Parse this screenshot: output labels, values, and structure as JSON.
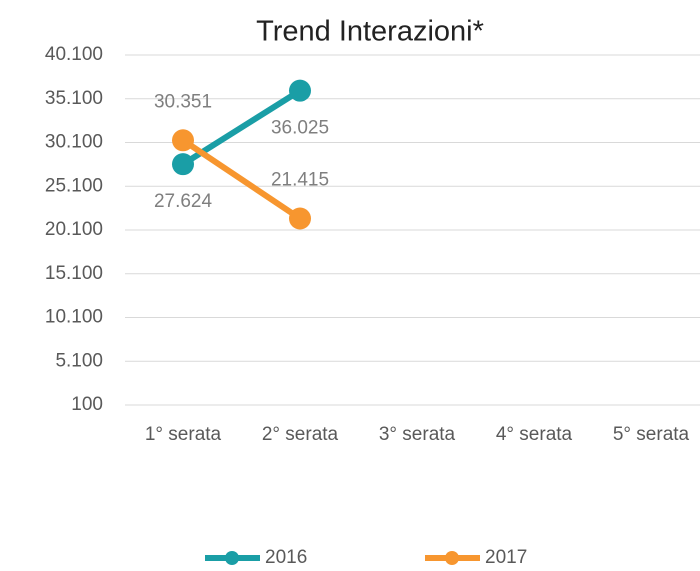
{
  "chart_data": {
    "type": "line",
    "title": "Trend Interazioni*",
    "categories": [
      "1° serata",
      "2° serata",
      "3° serata",
      "4° serata",
      "5° serata"
    ],
    "series": [
      {
        "name": "2016",
        "color": "#1a9ea6",
        "values": [
          27624,
          36025,
          null,
          null,
          null
        ],
        "value_labels": [
          "27.624",
          "36.025",
          null,
          null,
          null
        ]
      },
      {
        "name": "2017",
        "color": "#f7962f",
        "values": [
          30351,
          21415,
          null,
          null,
          null
        ],
        "value_labels": [
          "30.351",
          "21.415",
          null,
          null,
          null
        ]
      }
    ],
    "ylim": [
      100,
      40100
    ],
    "yticks": [
      100,
      {
        "value": 5100,
        "label": "5.100"
      },
      {
        "value": 10100,
        "label": "10.100"
      },
      {
        "value": 15100,
        "label": "15.100"
      },
      {
        "value": 20100,
        "label": "20.100"
      },
      {
        "value": 25100,
        "label": "25.100"
      },
      {
        "value": 30100,
        "label": "30.100"
      },
      {
        "value": 35100,
        "label": "35.100"
      },
      {
        "value": 40100,
        "label": "40.100"
      }
    ],
    "grid": true,
    "legend": "bottom"
  }
}
